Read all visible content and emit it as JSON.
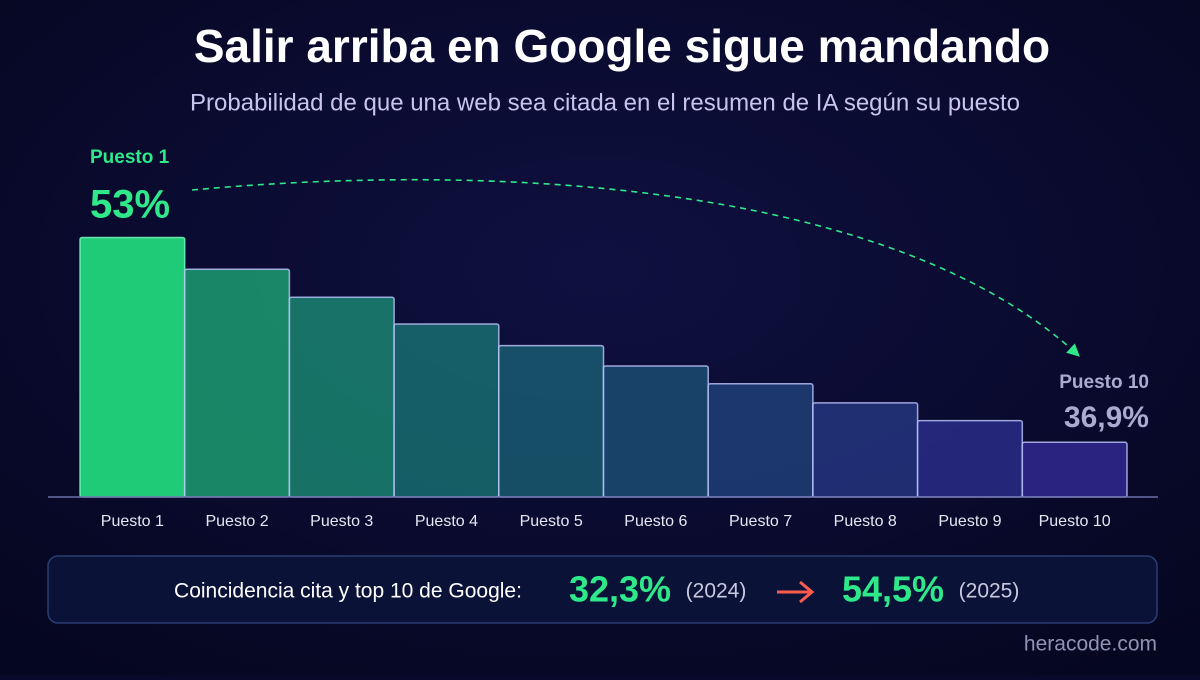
{
  "chart_data": {
    "type": "bar",
    "title": "Salir arriba en Google sigue mandando",
    "subtitle": "Probabilidad de que una web sea citada en el resumen de IA según su puesto",
    "categories": [
      "Puesto 1",
      "Puesto 2",
      "Puesto 3",
      "Puesto 4",
      "Puesto 5",
      "Puesto 6",
      "Puesto 7",
      "Puesto 8",
      "Puesto 9",
      "Puesto 10"
    ],
    "values": [
      53,
      50.5,
      48.3,
      46.2,
      44.5,
      42.9,
      41.5,
      40.0,
      38.6,
      36.9
    ],
    "value_labels": [
      "53%",
      null,
      null,
      null,
      null,
      null,
      null,
      null,
      null,
      "36,9%"
    ],
    "colors": [
      "#22d67c",
      "#1fb07a",
      "#1c9478",
      "#1a7a78",
      "#1b6478",
      "#1d5479",
      "#22457f",
      "#283a88",
      "#2e3293",
      "#352c9c"
    ],
    "ylim": [
      32.6,
      55
    ]
  },
  "callout": {
    "label": "Coincidencia cita y top 10 de Google:",
    "from_value": "32,3%",
    "from_year": "(2024)",
    "to_value": "54,5%",
    "to_year": "(2025)"
  },
  "source": "heracode.com"
}
